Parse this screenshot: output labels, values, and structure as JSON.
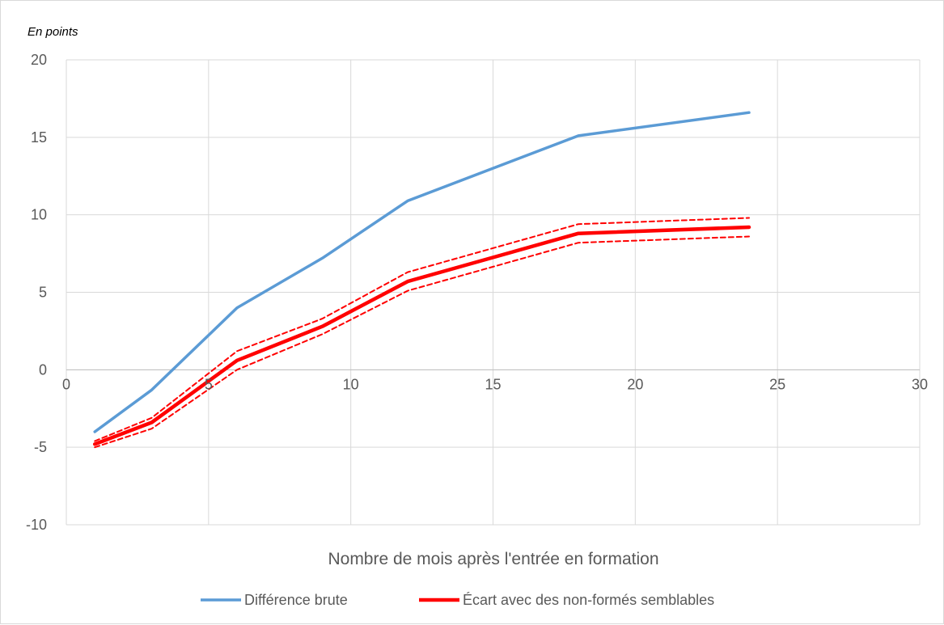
{
  "chart_data": {
    "type": "line",
    "unit_label": "En points",
    "xlabel": "Nombre de mois après l'entrée en formation",
    "ylabel": "",
    "xlim": [
      0,
      30
    ],
    "ylim": [
      -10,
      20
    ],
    "xticks": [
      0,
      5,
      10,
      15,
      20,
      25,
      30
    ],
    "yticks": [
      -10,
      -5,
      0,
      5,
      10,
      15,
      20
    ],
    "x_tick_labels": [
      "0",
      "5",
      "10",
      "15",
      "20",
      "25",
      "30"
    ],
    "y_tick_labels": [
      "-10",
      "-5",
      "0",
      "5",
      "10",
      "15",
      "20"
    ],
    "grid": true,
    "legend_position": "bottom",
    "series": [
      {
        "name": "Différence brute",
        "color": "#5b9bd5",
        "style": "solid",
        "in_legend": true,
        "points": [
          [
            1,
            -4.0
          ],
          [
            3,
            -1.3
          ],
          [
            6,
            4.0
          ],
          [
            9,
            7.2
          ],
          [
            12,
            10.9
          ],
          [
            18,
            15.1
          ],
          [
            24,
            16.6
          ]
        ]
      },
      {
        "name": "Écart avec des non-formés semblables",
        "color": "#ff0000",
        "style": "solid",
        "in_legend": true,
        "points": [
          [
            1,
            -4.8
          ],
          [
            3,
            -3.4
          ],
          [
            6,
            0.6
          ],
          [
            9,
            2.8
          ],
          [
            12,
            5.7
          ],
          [
            18,
            8.8
          ],
          [
            24,
            9.2
          ]
        ]
      },
      {
        "color": "#ff0000",
        "style": "dashed",
        "in_legend": false,
        "points": [
          [
            1,
            -4.6
          ],
          [
            3,
            -3.1
          ],
          [
            6,
            1.2
          ],
          [
            9,
            3.3
          ],
          [
            12,
            6.3
          ],
          [
            18,
            9.4
          ],
          [
            24,
            9.8
          ]
        ]
      },
      {
        "color": "#ff0000",
        "style": "dashed",
        "in_legend": false,
        "points": [
          [
            1,
            -5.0
          ],
          [
            3,
            -3.8
          ],
          [
            6,
            0.0
          ],
          [
            9,
            2.3
          ],
          [
            12,
            5.1
          ],
          [
            18,
            8.2
          ],
          [
            24,
            8.6
          ]
        ]
      }
    ]
  }
}
